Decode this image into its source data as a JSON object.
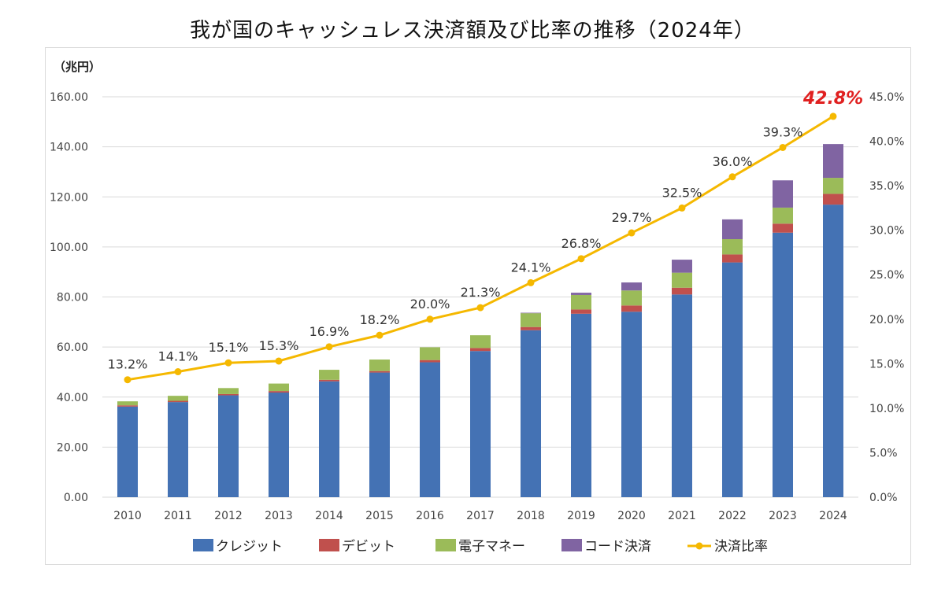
{
  "chart_data": {
    "type": "bar",
    "stacked": true,
    "title": "我が国のキャッシュレス決済額及び比率の推移（2024年）",
    "y_unit_label": "（兆円）",
    "categories": [
      "2010",
      "2011",
      "2012",
      "2013",
      "2014",
      "2015",
      "2016",
      "2017",
      "2018",
      "2019",
      "2020",
      "2021",
      "2022",
      "2023",
      "2024"
    ],
    "ylim": [
      0,
      160
    ],
    "y_ticks": [
      "0.00",
      "20.00",
      "40.00",
      "60.00",
      "80.00",
      "100.00",
      "120.00",
      "140.00",
      "160.00"
    ],
    "y2lim": [
      0,
      45
    ],
    "y2_ticks": [
      "0.0%",
      "5.0%",
      "10.0%",
      "15.0%",
      "20.0%",
      "25.0%",
      "30.0%",
      "35.0%",
      "40.0%",
      "45.0%"
    ],
    "series": [
      {
        "name": "クレジット",
        "color": "#4472b4",
        "values": [
          36.2,
          38.0,
          40.7,
          41.8,
          46.3,
          49.8,
          53.9,
          58.4,
          66.7,
          73.3,
          74.1,
          81.0,
          93.8,
          105.7,
          116.9
        ]
      },
      {
        "name": "デビット",
        "color": "#c0504d",
        "values": [
          0.5,
          0.5,
          0.5,
          0.6,
          0.6,
          0.6,
          0.9,
          1.2,
          1.3,
          1.7,
          2.5,
          2.7,
          3.2,
          3.6,
          4.3
        ]
      },
      {
        "name": "電子マネー",
        "color": "#9bbb59",
        "values": [
          1.6,
          2.0,
          2.4,
          3.0,
          4.0,
          4.6,
          5.1,
          5.1,
          5.5,
          5.8,
          6.0,
          6.0,
          6.1,
          6.4,
          6.4
        ]
      },
      {
        "name": "コード決済",
        "color": "#8064a2",
        "values": [
          0,
          0,
          0,
          0,
          0,
          0,
          0,
          0,
          0.2,
          0.9,
          3.2,
          5.2,
          7.9,
          10.9,
          13.5
        ]
      }
    ],
    "line": {
      "name": "決済比率",
      "color": "#f5b800",
      "axis": "right",
      "values": [
        13.2,
        14.1,
        15.1,
        15.3,
        16.9,
        18.2,
        20.0,
        21.3,
        24.1,
        26.8,
        29.7,
        32.5,
        36.0,
        39.3,
        42.8
      ],
      "labels": [
        "13.2%",
        "14.1%",
        "15.1%",
        "15.3%",
        "16.9%",
        "18.2%",
        "20.0%",
        "21.3%",
        "24.1%",
        "26.8%",
        "29.7%",
        "32.5%",
        "36.0%",
        "39.3%",
        "42.8%"
      ],
      "highlight_color": "#e02020"
    },
    "legend_position": "bottom",
    "grid": true
  }
}
